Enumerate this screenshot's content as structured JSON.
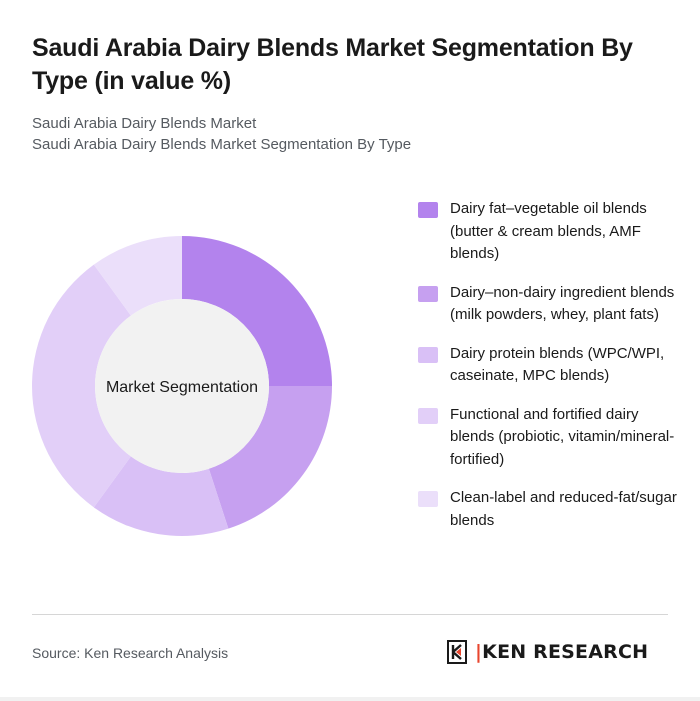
{
  "header": {
    "title": "Saudi Arabia Dairy Blends Market Segmentation By Type (in value %)",
    "subtitle_line1": "Saudi Arabia Dairy Blends Market",
    "subtitle_line2": "Saudi Arabia Dairy Blends Market Segmentation By Type"
  },
  "chart_data": {
    "type": "pie",
    "variant": "donut",
    "center_label": "Market Segmentation",
    "legend_position": "right",
    "categories": [
      "Dairy fat–vegetable oil blends (butter & cream blends, AMF blends)",
      "Dairy–non-dairy ingredient blends (milk powders, whey, plant fats)",
      "Dairy protein blends (WPC/WPI, caseinate, MPC blends)",
      "Functional and fortified dairy blends (probiotic, vitamin/mineral-fortified)",
      "Clean-label and reduced-fat/sugar blends"
    ],
    "values": [
      25,
      20,
      15,
      30,
      10
    ],
    "colors": [
      "#b383ed",
      "#c6a0f0",
      "#d9c0f6",
      "#e2cff8",
      "#ebdffa"
    ],
    "center_color": "#f2f2f2"
  },
  "footer": {
    "source": "Source: Ken Research Analysis",
    "logo_text": "KEN RESEARCH"
  }
}
